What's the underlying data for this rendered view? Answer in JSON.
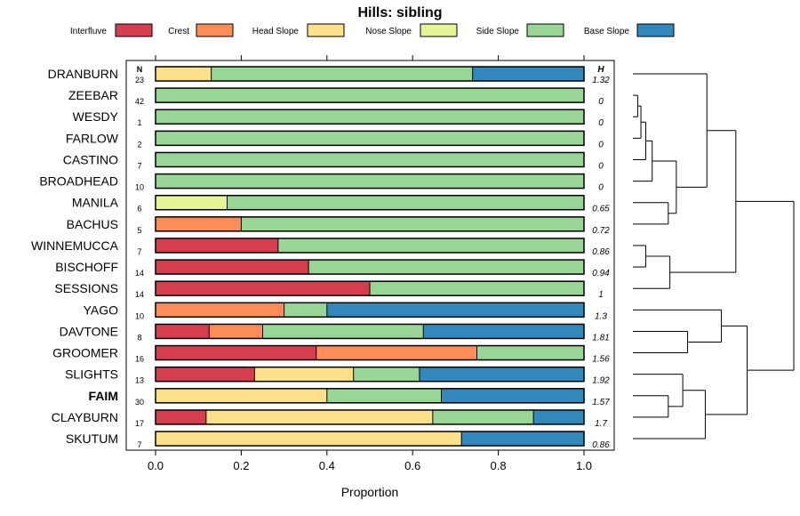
{
  "chart_data": {
    "type": "stacked-bar-horizontal",
    "title": "Hills: sibling",
    "xlabel": "Proportion",
    "ylabel": "",
    "xlim": [
      0,
      1
    ],
    "x_ticks": [
      "0.0",
      "0.2",
      "0.4",
      "0.6",
      "0.8",
      "1.0"
    ],
    "x_tick_values": [
      0,
      0.2,
      0.4,
      0.6,
      0.8,
      1.0
    ],
    "n_header": "N",
    "h_header": "H",
    "legend": [
      {
        "name": "Interfluve",
        "color": "#d53e4f"
      },
      {
        "name": "Crest",
        "color": "#fc8d59"
      },
      {
        "name": "Head Slope",
        "color": "#fee08b"
      },
      {
        "name": "Nose Slope",
        "color": "#e6f598"
      },
      {
        "name": "Side Slope",
        "color": "#99d594"
      },
      {
        "name": "Base Slope",
        "color": "#3288bd"
      }
    ],
    "categories": [
      {
        "name": "DRANBURN",
        "n": "23",
        "h": "1.32",
        "bold": false,
        "values": [
          0,
          0,
          0.13,
          0,
          0.61,
          0.26
        ]
      },
      {
        "name": "ZEEBAR",
        "n": "42",
        "h": "0",
        "bold": false,
        "values": [
          0,
          0,
          0,
          0,
          1.0,
          0
        ]
      },
      {
        "name": "WESDY",
        "n": "1",
        "h": "0",
        "bold": false,
        "values": [
          0,
          0,
          0,
          0,
          1.0,
          0
        ]
      },
      {
        "name": "FARLOW",
        "n": "2",
        "h": "0",
        "bold": false,
        "values": [
          0,
          0,
          0,
          0,
          1.0,
          0
        ]
      },
      {
        "name": "CASTINO",
        "n": "7",
        "h": "0",
        "bold": false,
        "values": [
          0,
          0,
          0,
          0,
          1.0,
          0
        ]
      },
      {
        "name": "BROADHEAD",
        "n": "10",
        "h": "0",
        "bold": false,
        "values": [
          0,
          0,
          0,
          0,
          1.0,
          0
        ]
      },
      {
        "name": "MANILA",
        "n": "6",
        "h": "0.65",
        "bold": false,
        "values": [
          0,
          0,
          0,
          0.167,
          0.833,
          0
        ]
      },
      {
        "name": "BACHUS",
        "n": "5",
        "h": "0.72",
        "bold": false,
        "values": [
          0,
          0.2,
          0,
          0,
          0.8,
          0
        ]
      },
      {
        "name": "WINNEMUCCA",
        "n": "7",
        "h": "0.86",
        "bold": false,
        "values": [
          0.286,
          0,
          0,
          0,
          0.714,
          0
        ]
      },
      {
        "name": "BISCHOFF",
        "n": "14",
        "h": "0.94",
        "bold": false,
        "values": [
          0.357,
          0,
          0,
          0,
          0.643,
          0
        ]
      },
      {
        "name": "SESSIONS",
        "n": "14",
        "h": "1",
        "bold": false,
        "values": [
          0.5,
          0,
          0,
          0,
          0.5,
          0
        ]
      },
      {
        "name": "YAGO",
        "n": "10",
        "h": "1.3",
        "bold": false,
        "values": [
          0,
          0.3,
          0,
          0,
          0.1,
          0.6
        ]
      },
      {
        "name": "DAVTONE",
        "n": "8",
        "h": "1.81",
        "bold": false,
        "values": [
          0.125,
          0.125,
          0,
          0,
          0.375,
          0.375
        ]
      },
      {
        "name": "GROOMER",
        "n": "16",
        "h": "1.56",
        "bold": false,
        "values": [
          0.375,
          0.375,
          0,
          0,
          0.25,
          0
        ]
      },
      {
        "name": "SLIGHTS",
        "n": "13",
        "h": "1.92",
        "bold": false,
        "values": [
          0.231,
          0,
          0.231,
          0,
          0.154,
          0.384
        ]
      },
      {
        "name": "FAIM",
        "n": "30",
        "h": "1.57",
        "bold": true,
        "values": [
          0,
          0,
          0.4,
          0,
          0.267,
          0.333
        ]
      },
      {
        "name": "CLAYBURN",
        "n": "17",
        "h": "1.7",
        "bold": false,
        "values": [
          0.118,
          0,
          0.529,
          0,
          0.235,
          0.118
        ]
      },
      {
        "name": "SKUTUM",
        "n": "7",
        "h": "0.86",
        "bold": false,
        "values": [
          0,
          0,
          0.714,
          0,
          0,
          0.286
        ]
      }
    ],
    "dendrogram": {
      "description": "Hierarchical clustering of series (right panel)",
      "merges": [
        [
          "ZEEBAR",
          "WESDY",
          0.03
        ],
        [
          "m0",
          "FARLOW",
          0.05
        ],
        [
          "m1",
          "CASTINO",
          0.08
        ],
        [
          "m2",
          "BROADHEAD",
          0.12
        ],
        [
          "MANILA",
          "BACHUS",
          0.22
        ],
        [
          "m3",
          "m4",
          0.27
        ],
        [
          "m5",
          "DRANBURN",
          0.46
        ],
        [
          "WINNEMUCCA",
          "BISCHOFF",
          0.08
        ],
        [
          "m7",
          "SESSIONS",
          0.23
        ],
        [
          "m6",
          "m8",
          0.64
        ],
        [
          "DAVTONE",
          "GROOMER",
          0.34
        ],
        [
          "m10",
          "YAGO",
          0.55
        ],
        [
          "FAIM",
          "CLAYBURN",
          0.22
        ],
        [
          "m12",
          "SLIGHTS",
          0.31
        ],
        [
          "m13",
          "SKUTUM",
          0.45
        ],
        [
          "m11",
          "m14",
          0.71
        ],
        [
          "m9",
          "m15",
          1.0
        ]
      ]
    }
  }
}
